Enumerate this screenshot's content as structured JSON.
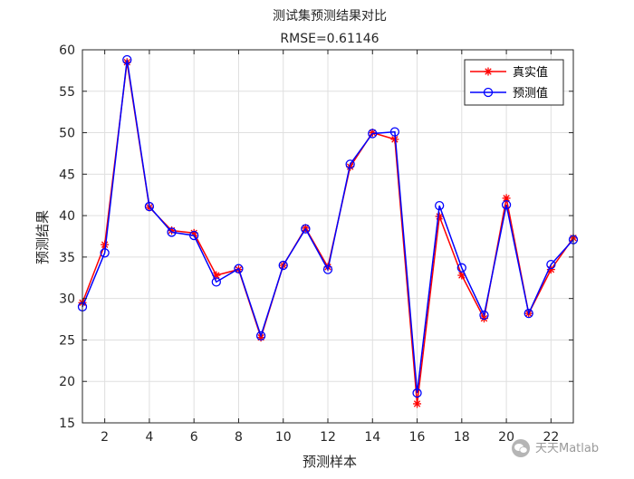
{
  "chart_data": {
    "type": "line",
    "title": "测试集预测结果对比",
    "subtitle": "RMSE=0.61146",
    "xlabel": "预测样本",
    "ylabel": "预测结果",
    "xlim": [
      1,
      23
    ],
    "ylim": [
      15,
      60
    ],
    "x_ticks": [
      2,
      4,
      6,
      8,
      10,
      12,
      14,
      16,
      18,
      20,
      22
    ],
    "y_ticks": [
      15,
      20,
      25,
      30,
      35,
      40,
      45,
      50,
      55,
      60
    ],
    "grid": true,
    "legend_position": "top-right",
    "x": [
      1,
      2,
      3,
      4,
      5,
      6,
      7,
      8,
      9,
      10,
      11,
      12,
      13,
      14,
      15,
      16,
      17,
      18,
      19,
      20,
      21,
      22,
      23
    ],
    "series": [
      {
        "name": "真实值",
        "color": "#ff0000",
        "marker": "asterisk",
        "values": [
          29.5,
          36.5,
          58.5,
          41.0,
          38.2,
          37.9,
          32.8,
          33.5,
          25.3,
          34.0,
          38.5,
          33.8,
          45.9,
          50.0,
          49.2,
          17.3,
          39.9,
          32.8,
          27.6,
          42.1,
          28.2,
          33.5,
          37.3
        ]
      },
      {
        "name": "预测值",
        "color": "#0000ff",
        "marker": "circle",
        "values": [
          29.0,
          35.5,
          58.8,
          41.1,
          38.0,
          37.6,
          32.0,
          33.6,
          25.5,
          34.0,
          38.4,
          33.5,
          46.2,
          49.9,
          50.1,
          18.6,
          41.2,
          33.7,
          28.0,
          41.3,
          28.2,
          34.1,
          37.1
        ]
      }
    ]
  },
  "watermark": {
    "icon": "wechat-icon",
    "text": "天天Matlab"
  }
}
